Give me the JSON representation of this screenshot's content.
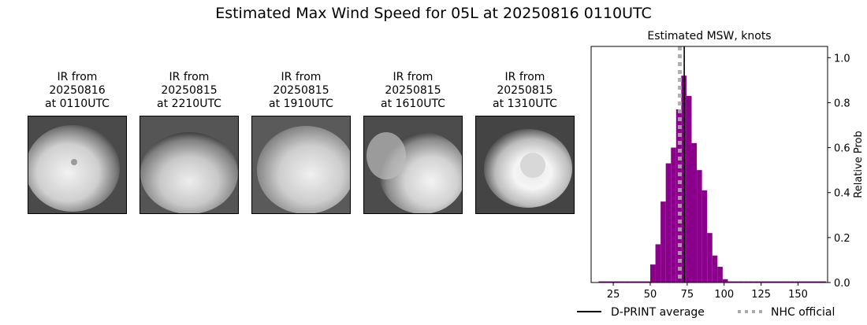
{
  "figure": {
    "title": "Estimated Max Wind Speed for 05L at 20250816 0110UTC"
  },
  "ir_panels": [
    {
      "line1": "IR from",
      "line2": "20250816",
      "line3": "at 0110UTC"
    },
    {
      "line1": "IR from",
      "line2": "20250815",
      "line3": "at 2210UTC"
    },
    {
      "line1": "IR from",
      "line2": "20250815",
      "line3": "at 1910UTC"
    },
    {
      "line1": "IR from",
      "line2": "20250815",
      "line3": "at 1610UTC"
    },
    {
      "line1": "IR from",
      "line2": "20250815",
      "line3": "at 1310UTC"
    }
  ],
  "chart_data": {
    "type": "bar",
    "title": "Estimated MSW, knots",
    "xlabel": "",
    "ylabel": "Relative Prob",
    "xlim": [
      10,
      170
    ],
    "ylim": [
      0,
      1.05
    ],
    "xticks": [
      25,
      50,
      75,
      100,
      125,
      150
    ],
    "yticks": [
      0.0,
      0.2,
      0.4,
      0.6,
      0.8,
      1.0
    ],
    "ytick_labels": [
      "0.0",
      "0.2",
      "0.4",
      "0.6",
      "0.8",
      "1.0"
    ],
    "bar_color": "#8b008b",
    "bin_width": 3.5,
    "bins": [
      {
        "x": 15,
        "value": 0.005
      },
      {
        "x": 18.5,
        "value": 0.005
      },
      {
        "x": 22,
        "value": 0.005
      },
      {
        "x": 25.5,
        "value": 0.005
      },
      {
        "x": 29,
        "value": 0.005
      },
      {
        "x": 32.5,
        "value": 0.005
      },
      {
        "x": 36,
        "value": 0.005
      },
      {
        "x": 39.5,
        "value": 0.005
      },
      {
        "x": 43,
        "value": 0.005
      },
      {
        "x": 46.5,
        "value": 0.005
      },
      {
        "x": 50,
        "value": 0.08
      },
      {
        "x": 53.5,
        "value": 0.17
      },
      {
        "x": 57,
        "value": 0.36
      },
      {
        "x": 60.5,
        "value": 0.53
      },
      {
        "x": 64,
        "value": 0.6
      },
      {
        "x": 67.5,
        "value": 0.77
      },
      {
        "x": 71,
        "value": 0.92
      },
      {
        "x": 74.5,
        "value": 0.83
      },
      {
        "x": 78,
        "value": 0.62
      },
      {
        "x": 81.5,
        "value": 0.5
      },
      {
        "x": 85,
        "value": 0.41
      },
      {
        "x": 88.5,
        "value": 0.22
      },
      {
        "x": 92,
        "value": 0.12
      },
      {
        "x": 95.5,
        "value": 0.07
      },
      {
        "x": 99,
        "value": 0.015
      },
      {
        "x": 102.5,
        "value": 0.005
      },
      {
        "x": 106,
        "value": 0.005
      },
      {
        "x": 109.5,
        "value": 0.005
      },
      {
        "x": 113,
        "value": 0.005
      },
      {
        "x": 116.5,
        "value": 0.005
      },
      {
        "x": 120,
        "value": 0.005
      },
      {
        "x": 123.5,
        "value": 0.005
      },
      {
        "x": 127,
        "value": 0.005
      },
      {
        "x": 130.5,
        "value": 0.005
      },
      {
        "x": 134,
        "value": 0.005
      },
      {
        "x": 137.5,
        "value": 0.005
      },
      {
        "x": 141,
        "value": 0.005
      },
      {
        "x": 144.5,
        "value": 0.005
      },
      {
        "x": 148,
        "value": 0.005
      },
      {
        "x": 151.5,
        "value": 0.005
      },
      {
        "x": 155,
        "value": 0.005
      },
      {
        "x": 158.5,
        "value": 0.005
      },
      {
        "x": 162,
        "value": 0.005
      },
      {
        "x": 165.5,
        "value": 0.005
      }
    ],
    "dprint_average": 73,
    "nhc_official": 70,
    "legend": [
      {
        "label": "D-PRINT average",
        "style": "solid",
        "color": "#000000"
      },
      {
        "label": "NHC official",
        "style": "dotted",
        "color": "#a9a9a9"
      }
    ],
    "legend_placement": "bottom"
  }
}
